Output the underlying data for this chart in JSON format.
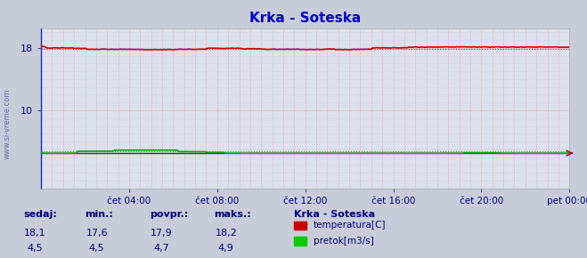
{
  "title": "Krka - Soteska",
  "bg_color": "#c8ccd8",
  "plot_bg_color": "#dce0ec",
  "title_color": "#0000cc",
  "grid_color_v": "#ee8888",
  "grid_color_h": "#aabbcc",
  "ylim": [
    0,
    20.5
  ],
  "yticks": [
    10,
    18
  ],
  "ylabel_color": "#000080",
  "xlabel_color": "#000080",
  "xticklabels": [
    "čet 04:00",
    "čet 08:00",
    "čet 12:00",
    "čet 16:00",
    "čet 20:00",
    "pet 00:00"
  ],
  "watermark": "www.si-vreme.com",
  "temp_color": "#cc0000",
  "flow_color": "#00aa00",
  "blue_line_color": "#2222bb",
  "legend_title": "Krka - Soteska",
  "legend_title_color": "#000080",
  "legend_color": "#000080",
  "stats_color": "#000080",
  "stats_label_color": "#000080",
  "footer_labels": [
    "sedaj:",
    "min.:",
    "povpr.:",
    "maks.:"
  ],
  "temp_stats": [
    "18,1",
    "17,6",
    "17,9",
    "18,2"
  ],
  "flow_stats": [
    "4,5",
    "4,5",
    "4,7",
    "4,9"
  ],
  "legend_items": [
    "temperatura[C]",
    "pretok[m3/s]"
  ],
  "legend_item_colors": [
    "#cc0000",
    "#00cc00"
  ],
  "n_points": 288
}
